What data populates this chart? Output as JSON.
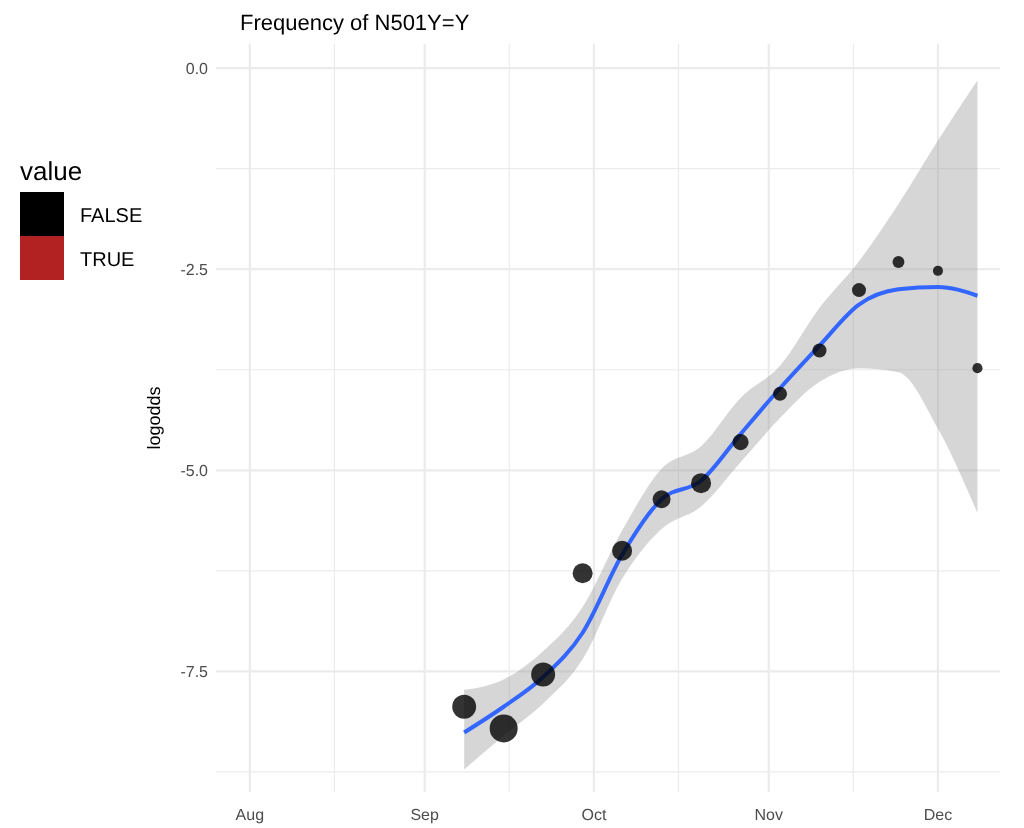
{
  "chart_data": {
    "type": "scatter",
    "title": "Frequency of N501Y=Y",
    "ylabel": "logodds",
    "legend_title": "value",
    "legend": "left",
    "grid": true,
    "xlim": [
      "--07-26",
      "--12-12"
    ],
    "ylim": [
      -9.0,
      0.3
    ],
    "xticks": [
      {
        "value": "--08-01",
        "label": "Aug"
      },
      {
        "value": "--08-16",
        "label": null
      },
      {
        "value": "--09-01",
        "label": "Sep"
      },
      {
        "value": "--09-16",
        "label": null
      },
      {
        "value": "--10-01",
        "label": "Oct"
      },
      {
        "value": "--10-16",
        "label": null
      },
      {
        "value": "--11-01",
        "label": "Nov"
      },
      {
        "value": "--11-16",
        "label": null
      },
      {
        "value": "--12-01",
        "label": "Dec"
      }
    ],
    "yticks": [
      {
        "value": 0,
        "label": "0.0"
      },
      {
        "value": -1.25,
        "label": null
      },
      {
        "value": -2.5,
        "label": "-2.5"
      },
      {
        "value": -3.75,
        "label": null
      },
      {
        "value": -5,
        "label": "-5.0"
      },
      {
        "value": -6.25,
        "label": null
      },
      {
        "value": -7.5,
        "label": "-7.5"
      },
      {
        "value": -8.75,
        "label": null
      }
    ],
    "series": [
      {
        "name": "FALSE",
        "marker": "circle",
        "color": "#000000",
        "x": [
          "--09-08",
          "--09-15",
          "--09-22",
          "--09-29",
          "--10-06",
          "--10-13",
          "--10-20",
          "--10-27",
          "--11-03",
          "--11-10",
          "--11-17",
          "--11-24",
          "--12-01",
          "--12-08"
        ],
        "values": [
          -7.94,
          -8.21,
          -7.54,
          -6.28,
          -6.0,
          -5.36,
          -5.16,
          -4.65,
          -4.05,
          -3.51,
          -2.76,
          -2.41,
          -2.52,
          -3.73
        ],
        "sizes": [
          0.73,
          1,
          0.73,
          0.51,
          0.51,
          0.41,
          0.51,
          0.33,
          0.25,
          0.25,
          0.25,
          0.18,
          0.13,
          0.13
        ]
      },
      {
        "name": "TRUE",
        "color": "#b22222"
      },
      {
        "type": "line",
        "color": "#3366ff",
        "x": [
          "--09-08",
          "--09-15",
          "--09-22",
          "--09-29",
          "--10-06",
          "--10-13",
          "--10-20",
          "--10-27",
          "--11-03",
          "--11-10",
          "--11-17",
          "--11-24",
          "--12-01",
          "--12-08"
        ],
        "values": [
          -8.26,
          -7.94,
          -7.57,
          -7.02,
          -6.05,
          -5.36,
          -5.13,
          -4.55,
          -3.98,
          -3.45,
          -2.94,
          -2.75,
          -2.72,
          -2.83
        ],
        "lower": [
          -8.72,
          -8.3,
          -7.9,
          -7.35,
          -6.35,
          -5.73,
          -5.45,
          -4.9,
          -4.35,
          -3.9,
          -3.73,
          -3.78,
          -4.48,
          -5.53
        ],
        "upper": [
          -7.73,
          -7.6,
          -7.25,
          -6.7,
          -5.75,
          -4.98,
          -4.7,
          -4.1,
          -3.7,
          -2.98,
          -2.4,
          -1.69,
          -0.9,
          -0.15
        ]
      }
    ]
  }
}
